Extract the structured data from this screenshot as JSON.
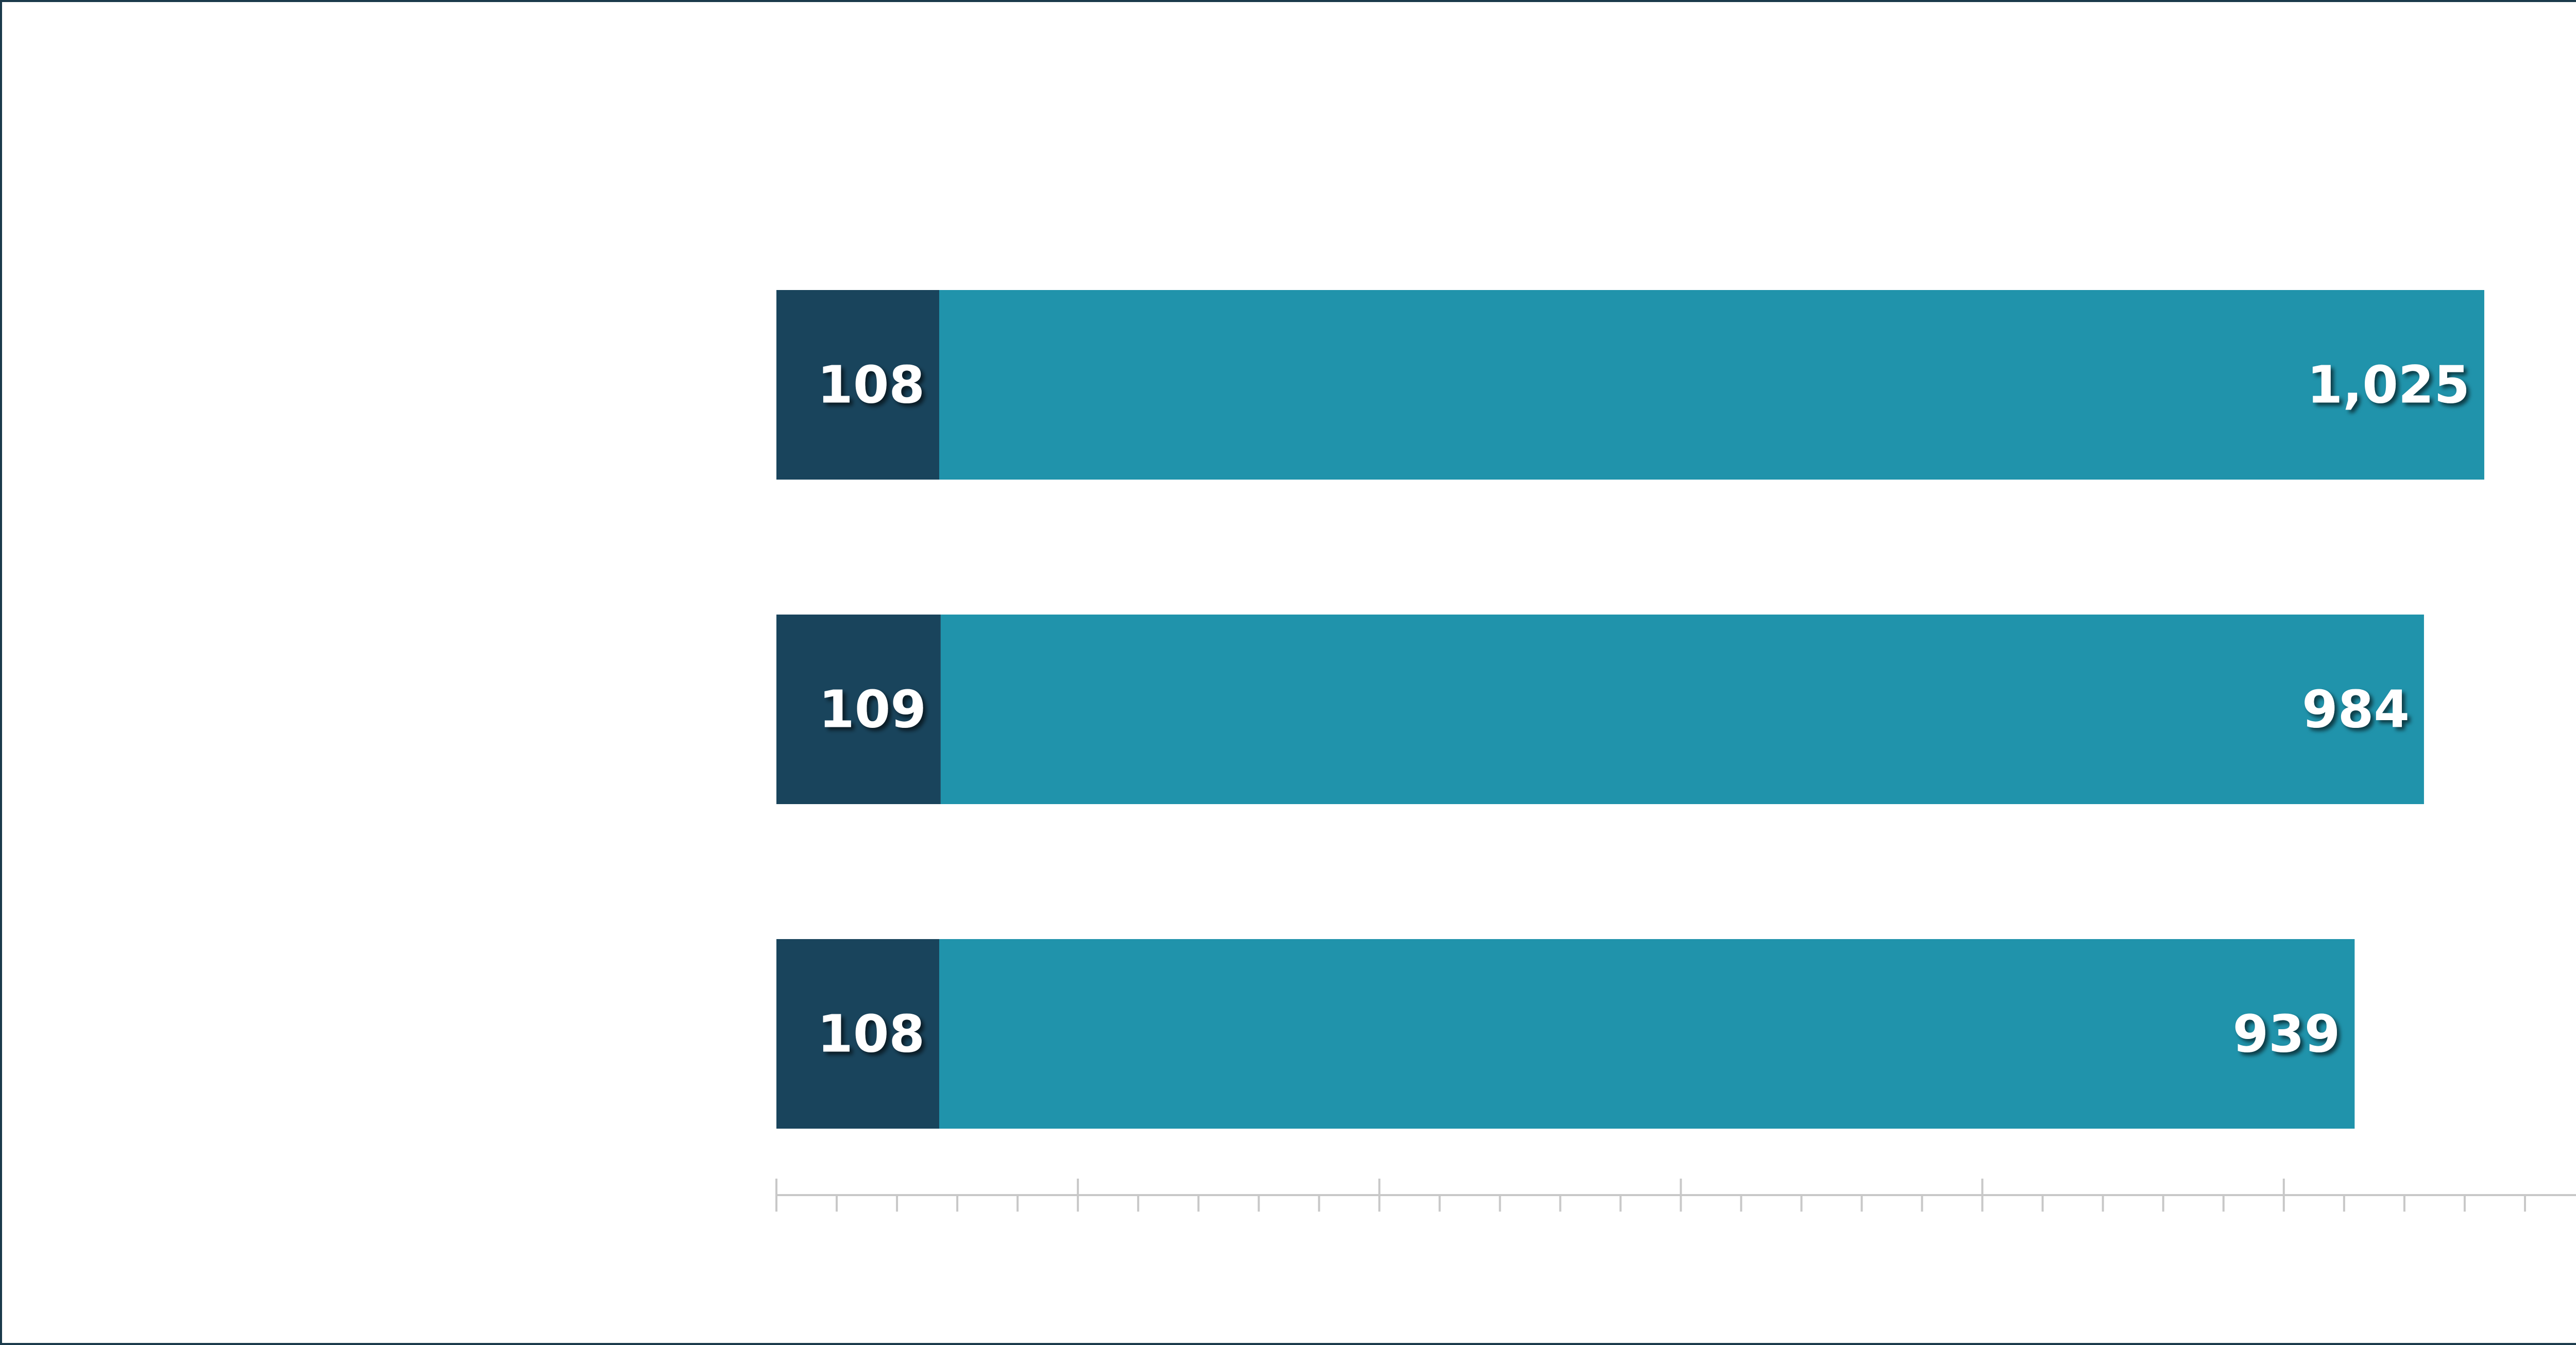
{
  "chart_data": {
    "type": "bar",
    "orientation": "horizontal",
    "stacked": true,
    "categories": [
      "",
      "",
      ""
    ],
    "series": [
      {
        "values": [
          108,
          109,
          108
        ],
        "color": "#19445c"
      },
      {
        "values": [
          1025,
          984,
          939
        ],
        "color": "#2093ab"
      }
    ],
    "data_labels": [
      [
        "108",
        "1,025"
      ],
      [
        "109",
        "984"
      ],
      [
        "108",
        "939"
      ]
    ],
    "xlim": [
      0,
      1200
    ],
    "major_tick_step": 200,
    "minor_tick_step": 40,
    "tick_labels_shown": false,
    "grid": false,
    "legend": "none",
    "title": "",
    "xlabel": "",
    "ylabel": ""
  },
  "colors": {
    "frame_border": "#1b3a4b",
    "axis": "#c8c8c8",
    "label_text": "#ffffff"
  }
}
